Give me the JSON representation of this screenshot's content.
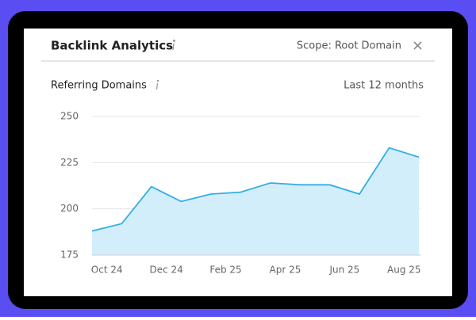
{
  "header": {
    "title": "Backlink Analytics",
    "scope": "Scope: Root Domain"
  },
  "chart_data": {
    "type": "area",
    "title": "Referring Domains",
    "subtitle": "Last 12 months",
    "categories": [
      "Oct 24",
      null,
      "Dec 24",
      null,
      "Feb 25",
      null,
      "Apr 25",
      null,
      "Jun 25",
      null,
      "Aug 25",
      null
    ],
    "values": [
      188,
      192,
      212,
      204,
      208,
      209,
      214,
      213,
      213,
      208,
      233,
      228
    ],
    "color": "#33aee6",
    "fill": "#d3eefb",
    "ylim": [
      175,
      250
    ],
    "yticks": [
      175,
      200,
      225,
      250
    ],
    "grid": true
  }
}
